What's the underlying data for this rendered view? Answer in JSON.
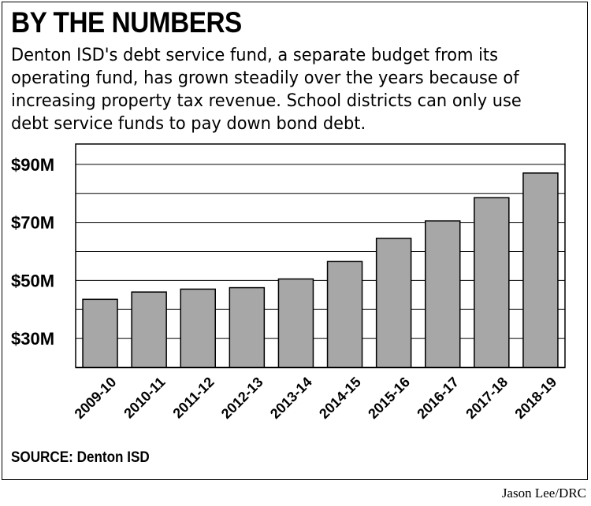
{
  "header": {
    "title": "BY THE NUMBERS",
    "description": "Denton ISD's debt service fund, a separate budget from its operating fund, has grown steadily over the years because of increasing property tax revenue. School districts can only use debt service funds to pay down bond debt."
  },
  "chart_data": {
    "type": "bar",
    "categories": [
      "2009-10",
      "2010-11",
      "2011-12",
      "2012-13",
      "2013-14",
      "2014-15",
      "2015-16",
      "2016-17",
      "2017-18",
      "2018-19"
    ],
    "values": [
      43.5,
      46,
      47,
      47.5,
      50.5,
      56.5,
      64.5,
      70.5,
      78.5,
      87
    ],
    "ylim": [
      20,
      97
    ],
    "yticks": [
      30,
      50,
      70,
      90
    ],
    "ytick_labels": [
      "$30M",
      "$50M",
      "$70M",
      "$90M"
    ],
    "grid": true,
    "bar_color": "#a7a7a7",
    "background_color": "#ffffff"
  },
  "footer": {
    "source": "SOURCE: Denton ISD",
    "credit": "Jason Lee/DRC"
  }
}
